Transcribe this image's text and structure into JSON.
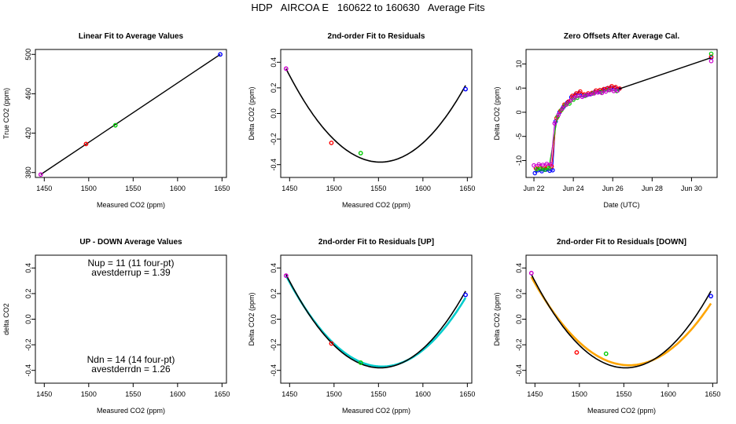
{
  "figure": {
    "title": "HDP   AIRCOA E   160622 to 160630   Average Fits"
  },
  "chart_data": [
    {
      "id": "p1",
      "type": "scatter",
      "title": "Linear Fit to Average Values",
      "xlabel": "Measured CO2 (ppm)",
      "ylabel": "True CO2 (ppm)",
      "xlim": [
        1440,
        1655
      ],
      "ylim": [
        375,
        505
      ],
      "xticks": [
        1450,
        1500,
        1550,
        1600,
        1650
      ],
      "yticks": [
        380,
        420,
        460,
        500
      ],
      "series": [
        {
          "name": "fit",
          "kind": "line",
          "color": "#000000",
          "x": [
            1446,
            1648
          ],
          "y": [
            378,
            500
          ]
        },
        {
          "name": "points",
          "kind": "points",
          "x": [
            1446,
            1497,
            1530,
            1648
          ],
          "y": [
            378,
            409,
            428,
            500
          ],
          "colors": [
            "#cc00cc",
            "#ff0000",
            "#00cc00",
            "#0000ff"
          ]
        }
      ]
    },
    {
      "id": "p2",
      "type": "scatter",
      "title": "2nd-order Fit to Residuals",
      "xlabel": "Measured CO2 (ppm)",
      "ylabel": "Delta CO2 (ppm)",
      "xlim": [
        1440,
        1655
      ],
      "ylim": [
        -0.5,
        0.5
      ],
      "xticks": [
        1450,
        1500,
        1550,
        1600,
        1650
      ],
      "yticks": [
        -0.4,
        -0.2,
        0.0,
        0.2,
        0.4
      ],
      "curves": [
        {
          "name": "fit",
          "color": "#000000",
          "vertex_x": 1552,
          "vertex_y": -0.38,
          "through_x": 1446,
          "through_y": 0.35,
          "x0": 1446,
          "x1": 1648
        }
      ],
      "points": {
        "x": [
          1446,
          1497,
          1530,
          1648
        ],
        "y": [
          0.35,
          -0.23,
          -0.31,
          0.19
        ],
        "colors": [
          "#cc00cc",
          "#ff0000",
          "#00cc00",
          "#0000ff"
        ]
      }
    },
    {
      "id": "p3",
      "type": "scatter",
      "title": "Zero Offsets After Average Cal.",
      "xlabel": "Date (UTC)",
      "ylabel": "Delta CO2 (ppm)",
      "xlim": [
        21.6,
        31.3
      ],
      "ylim": [
        -13.5,
        13
      ],
      "xticks": [
        22,
        24,
        26,
        28,
        30
      ],
      "xtick_labels": [
        "Jun 22",
        "Jun 24",
        "Jun 26",
        "Jun 28",
        "Jun 30"
      ],
      "yticks": [
        -10,
        -5,
        0,
        5,
        10
      ],
      "series": [
        {
          "name": "blue",
          "color": "#0000ff",
          "x": [
            22.05,
            22.2,
            22.4,
            22.6,
            22.8,
            22.95,
            23.1,
            23.3,
            23.5,
            23.7,
            23.9,
            24.1,
            24.3,
            24.5,
            24.7,
            24.9,
            25.1,
            25.3,
            25.5,
            25.7,
            25.9,
            26.1,
            26.3,
            31.0
          ],
          "y": [
            -12.6,
            -12.0,
            -12.2,
            -11.9,
            -12.1,
            -12.0,
            -1.9,
            0.0,
            1.1,
            2.0,
            3.1,
            3.6,
            4.0,
            3.5,
            3.6,
            3.8,
            4.2,
            4.3,
            4.6,
            4.9,
            5.1,
            5.0,
            4.8,
            11.3
          ]
        },
        {
          "name": "red",
          "color": "#ff0000",
          "x": [
            22.1,
            22.3,
            22.5,
            22.7,
            22.9,
            23.15,
            23.35,
            23.55,
            23.75,
            23.95,
            24.15,
            24.35,
            24.55,
            24.75,
            24.95,
            25.15,
            25.35,
            25.55,
            25.75,
            25.95,
            26.15,
            26.35,
            31.0
          ],
          "y": [
            -11.6,
            -11.4,
            -11.5,
            -11.3,
            -11.2,
            -1.2,
            0.3,
            1.6,
            2.2,
            3.4,
            3.9,
            4.3,
            3.7,
            3.9,
            4.0,
            4.5,
            4.6,
            4.8,
            5.0,
            5.4,
            5.2,
            4.9,
            11.5
          ]
        },
        {
          "name": "green",
          "color": "#00cc00",
          "x": [
            22.15,
            22.35,
            22.55,
            22.75,
            23.2,
            23.4,
            23.6,
            23.8,
            24.0,
            24.2,
            24.6,
            25.0,
            25.4,
            25.8,
            26.2,
            31.0
          ],
          "y": [
            -11.8,
            -11.7,
            -11.9,
            -11.6,
            -0.9,
            0.5,
            1.5,
            1.8,
            2.6,
            3.0,
            3.4,
            3.9,
            4.2,
            4.6,
            4.4,
            12.1
          ]
        },
        {
          "name": "magenta",
          "color": "#cc00cc",
          "x": [
            22.0,
            22.25,
            22.45,
            22.65,
            22.85,
            23.05,
            23.25,
            23.45,
            23.65,
            23.85,
            24.05,
            24.25,
            24.45,
            24.65,
            24.85,
            25.05,
            25.25,
            25.45,
            25.65,
            25.85,
            26.05,
            26.25,
            31.0
          ],
          "y": [
            -11.0,
            -10.8,
            -10.9,
            -10.7,
            -10.8,
            -2.3,
            -0.5,
            0.8,
            1.6,
            2.4,
            3.0,
            3.4,
            3.2,
            3.5,
            3.7,
            3.9,
            4.1,
            4.0,
            4.3,
            4.6,
            4.4,
            4.5,
            10.6
          ]
        },
        {
          "name": "line",
          "color": "#000000",
          "x": [
            26.3,
            31.0
          ],
          "y": [
            4.8,
            11.3
          ]
        }
      ]
    },
    {
      "id": "p4",
      "type": "text",
      "title": "UP - DOWN Average Values",
      "xlabel": "Measured CO2 (ppm)",
      "ylabel": "delta CO2",
      "xlim": [
        1440,
        1655
      ],
      "ylim": [
        -0.5,
        0.5
      ],
      "xticks": [
        1450,
        1500,
        1550,
        1600,
        1650
      ],
      "yticks": [
        -0.4,
        -0.2,
        0.0,
        0.2,
        0.4
      ],
      "annotations": [
        "Nup = 11 (11 four-pt)",
        "avestderrup =  1.39",
        "Ndn = 14 (14 four-pt)",
        "avestderrdn =  1.26"
      ]
    },
    {
      "id": "p5",
      "type": "scatter",
      "title": "2nd-order Fit to Residuals [UP]",
      "xlabel": "Measured CO2 (ppm)",
      "ylabel": "Delta CO2 (ppm)",
      "xlim": [
        1440,
        1655
      ],
      "ylim": [
        -0.5,
        0.5
      ],
      "xticks": [
        1450,
        1500,
        1550,
        1600,
        1650
      ],
      "yticks": [
        -0.4,
        -0.2,
        0.0,
        0.2,
        0.4
      ],
      "curves": [
        {
          "name": "up-fit",
          "color": "#00cccc",
          "vertex_x": 1554,
          "vertex_y": -0.37,
          "through_x": 1446,
          "through_y": 0.34,
          "x0": 1446,
          "x1": 1648
        },
        {
          "name": "fit",
          "color": "#000000",
          "vertex_x": 1552,
          "vertex_y": -0.38,
          "through_x": 1446,
          "through_y": 0.35,
          "x0": 1446,
          "x1": 1648
        }
      ],
      "points": {
        "x": [
          1446,
          1497,
          1530,
          1648
        ],
        "y": [
          0.34,
          -0.19,
          -0.34,
          0.19
        ],
        "colors": [
          "#cc00cc",
          "#ff0000",
          "#00cc00",
          "#0000ff"
        ]
      }
    },
    {
      "id": "p6",
      "type": "scatter",
      "title": "2nd-order Fit to Residuals [DOWN]",
      "xlabel": "Measured CO2 (ppm)",
      "ylabel": "Delta CO2 (ppm)",
      "xlim": [
        1440,
        1655
      ],
      "ylim": [
        -0.5,
        0.5
      ],
      "xticks": [
        1450,
        1500,
        1550,
        1600,
        1650
      ],
      "yticks": [
        -0.4,
        -0.2,
        0.0,
        0.2,
        0.4
      ],
      "curves": [
        {
          "name": "down-fit",
          "color": "#ffa500",
          "vertex_x": 1556,
          "vertex_y": -0.36,
          "through_x": 1446,
          "through_y": 0.33,
          "x0": 1446,
          "x1": 1648
        },
        {
          "name": "fit",
          "color": "#000000",
          "vertex_x": 1552,
          "vertex_y": -0.38,
          "through_x": 1446,
          "through_y": 0.35,
          "x0": 1446,
          "x1": 1648
        }
      ],
      "points": {
        "x": [
          1446,
          1497,
          1530,
          1648
        ],
        "y": [
          0.36,
          -0.26,
          -0.27,
          0.18
        ],
        "colors": [
          "#cc00cc",
          "#ff0000",
          "#00cc00",
          "#0000ff"
        ]
      }
    }
  ]
}
